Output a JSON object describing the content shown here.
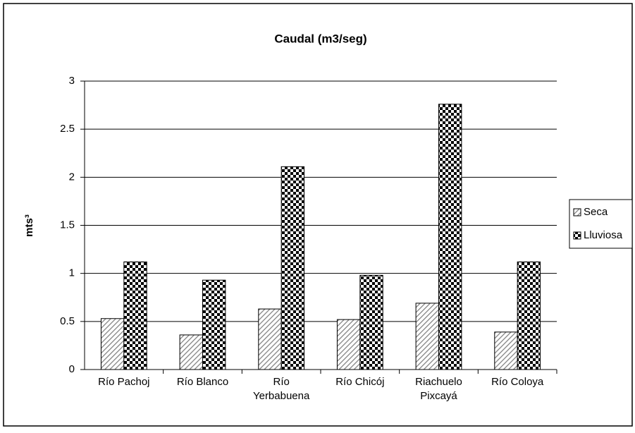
{
  "chart_data": {
    "type": "bar",
    "title": "Caudal (m3/seg)",
    "y_label": "mts³",
    "categories": [
      "Río Pachoj",
      "Río Blanco",
      "Río Yerbabuena",
      "Río Chicój",
      "Riachuelo Pixcayá",
      "Río Coloya"
    ],
    "series": [
      {
        "name": "Seca",
        "color": "#808080",
        "pattern": "hatch",
        "values": [
          0.53,
          0.36,
          0.63,
          0.52,
          0.69,
          0.39
        ]
      },
      {
        "name": "Lluviosa",
        "color": "#000000",
        "pattern": "checker",
        "values": [
          1.12,
          0.93,
          2.11,
          0.98,
          2.76,
          1.12
        ]
      }
    ],
    "ylim": [
      0,
      3
    ],
    "yticks": [
      0,
      0.5,
      1,
      1.5,
      2,
      2.5,
      3
    ],
    "grid": true,
    "legend": "right"
  }
}
